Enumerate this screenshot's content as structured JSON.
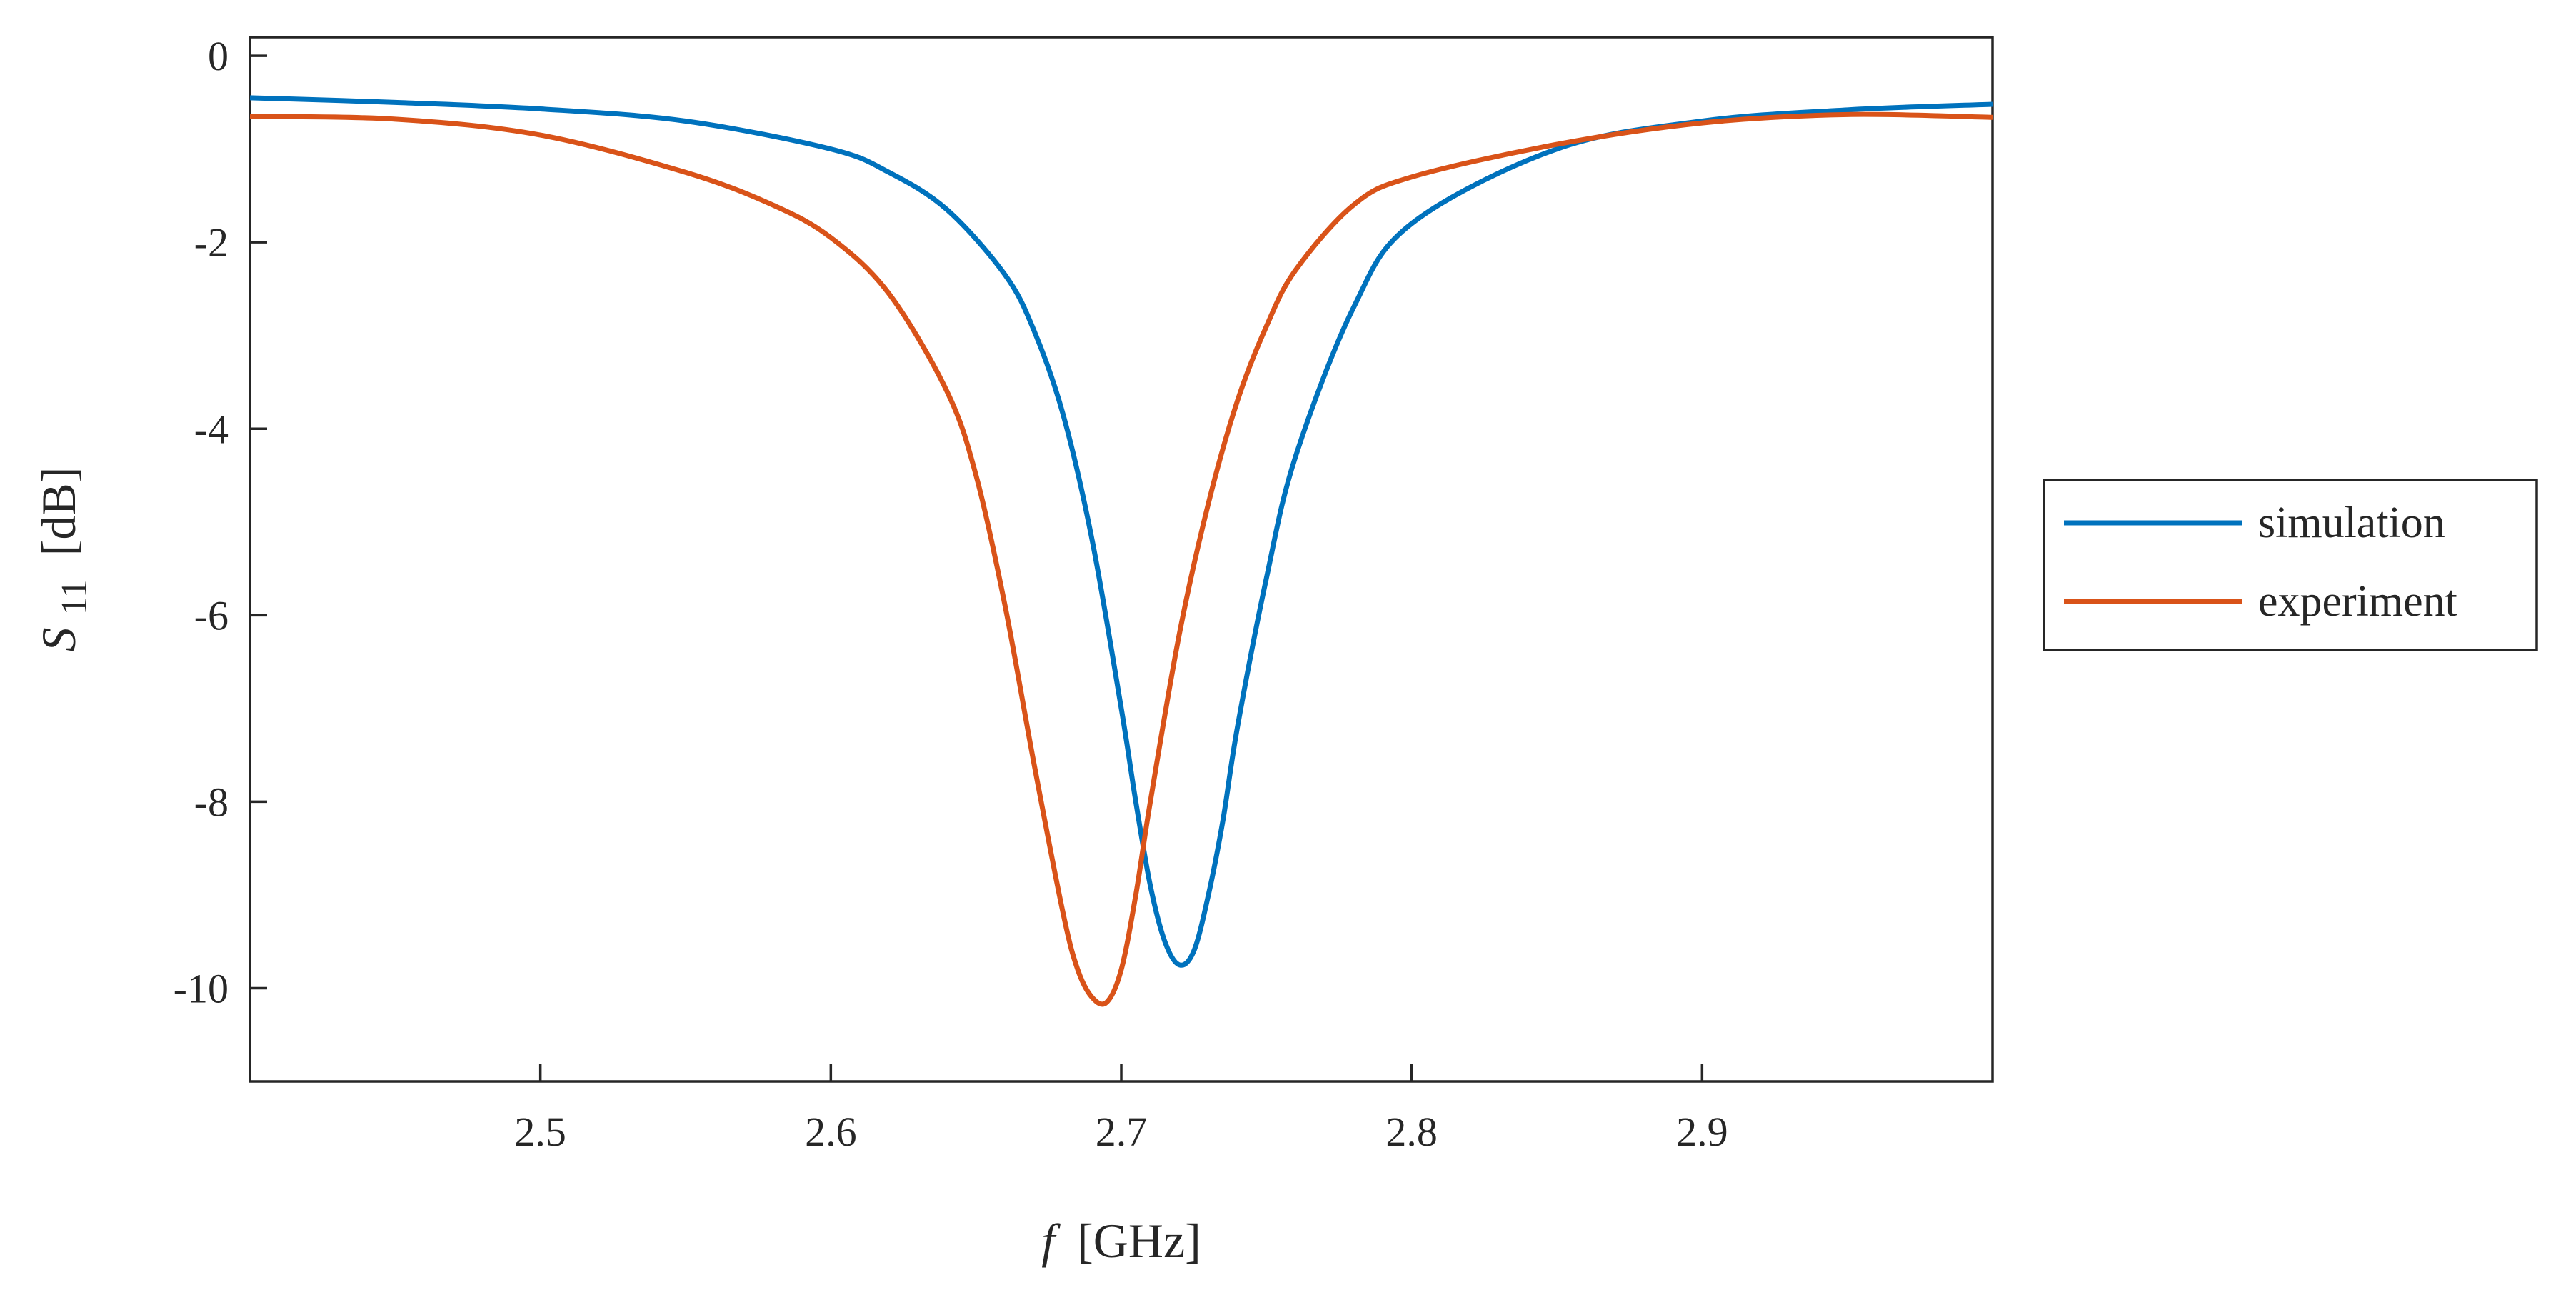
{
  "chart_data": {
    "type": "line",
    "xlabel_italic": "f",
    "xlabel_rest": "[GHz]",
    "ylabel_main": "S",
    "ylabel_sub": "11",
    "ylabel_rest": "[dB]",
    "xlim": [
      2.4,
      3.0
    ],
    "ylim": [
      -11,
      0.2
    ],
    "x_ticks": [
      2.5,
      2.6,
      2.7,
      2.8,
      2.9
    ],
    "x_tick_labels": [
      "2.5",
      "2.6",
      "2.7",
      "2.8",
      "2.9"
    ],
    "y_ticks": [
      0,
      -2,
      -4,
      -6,
      -8,
      -10
    ],
    "y_tick_labels": [
      "0",
      "-2",
      "-4",
      "-6",
      "-8",
      "-10"
    ],
    "grid": false,
    "legend_position": "outside-right",
    "series": [
      {
        "name": "simulation",
        "color": "#0072BD",
        "x": [
          2.4,
          2.45,
          2.5,
          2.55,
          2.6,
          2.62,
          2.64,
          2.66,
          2.67,
          2.68,
          2.69,
          2.7,
          2.705,
          2.71,
          2.715,
          2.72,
          2.725,
          2.73,
          2.735,
          2.74,
          2.75,
          2.76,
          2.78,
          2.8,
          2.85,
          2.9,
          2.95,
          3.0
        ],
        "y": [
          -0.45,
          -0.5,
          -0.57,
          -0.7,
          -1.0,
          -1.25,
          -1.65,
          -2.35,
          -2.95,
          -3.85,
          -5.2,
          -7.0,
          -8.0,
          -8.9,
          -9.5,
          -9.75,
          -9.6,
          -9.0,
          -8.2,
          -7.2,
          -5.6,
          -4.3,
          -2.7,
          -1.8,
          -1.0,
          -0.7,
          -0.58,
          -0.52
        ]
      },
      {
        "name": "experiment",
        "color": "#D95319",
        "x": [
          2.4,
          2.45,
          2.5,
          2.55,
          2.58,
          2.6,
          2.62,
          2.64,
          2.65,
          2.66,
          2.67,
          2.68,
          2.685,
          2.69,
          2.695,
          2.7,
          2.705,
          2.71,
          2.72,
          2.73,
          2.74,
          2.75,
          2.76,
          2.78,
          2.8,
          2.85,
          2.9,
          2.95,
          3.0
        ],
        "y": [
          -0.65,
          -0.68,
          -0.85,
          -1.25,
          -1.6,
          -1.95,
          -2.55,
          -3.6,
          -4.5,
          -5.9,
          -7.6,
          -9.2,
          -9.8,
          -10.1,
          -10.15,
          -9.8,
          -9.0,
          -8.0,
          -6.2,
          -4.8,
          -3.7,
          -2.9,
          -2.3,
          -1.6,
          -1.3,
          -0.95,
          -0.72,
          -0.63,
          -0.66
        ]
      }
    ]
  }
}
